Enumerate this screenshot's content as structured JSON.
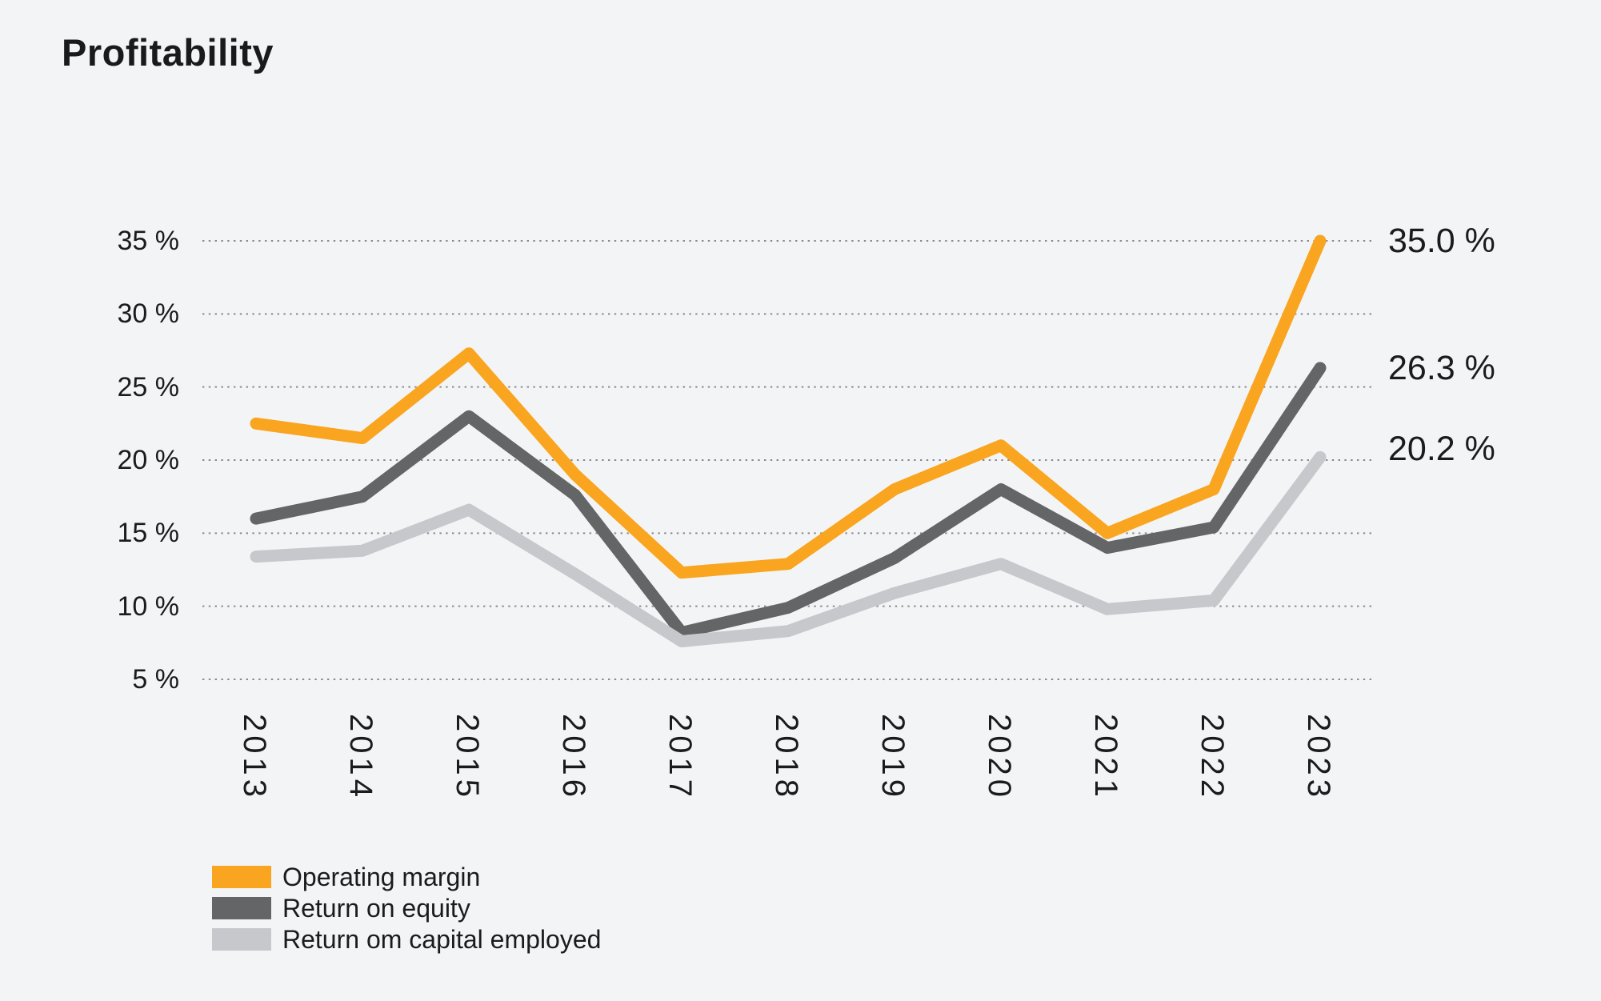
{
  "title": "Profitability",
  "colors": {
    "background": "#F3F4F6",
    "gridline": "#8A8A8A",
    "text": "#1B1B1B",
    "accent_orange": "#F9A51F",
    "dark_gray": "#636567",
    "light_gray": "#C6C8CB"
  },
  "chart_data": {
    "type": "line",
    "title": "Profitability",
    "categories": [
      "2013",
      "2014",
      "2015",
      "2016",
      "2017",
      "2018",
      "2019",
      "2020",
      "2021",
      "2022",
      "2023"
    ],
    "series": [
      {
        "name": "Operating margin",
        "color": "#F9A51F",
        "values": [
          22.5,
          21.5,
          27.3,
          19.0,
          12.3,
          12.9,
          18.0,
          21.0,
          15.0,
          18.0,
          35.0
        ],
        "end_label": "35.0 %"
      },
      {
        "name": "Return on equity",
        "color": "#636567",
        "values": [
          16.0,
          17.5,
          23.0,
          17.6,
          8.2,
          9.9,
          13.3,
          18.0,
          14.0,
          15.4,
          26.3
        ],
        "end_label": "26.3 %"
      },
      {
        "name": "Return om capital employed",
        "color": "#C6C8CB",
        "values": [
          13.4,
          13.8,
          16.6,
          12.2,
          7.6,
          8.3,
          10.9,
          12.9,
          9.8,
          10.4,
          20.2
        ],
        "end_label": "20.2 %"
      }
    ],
    "y_ticks": [
      {
        "value": 35,
        "label": "35 %"
      },
      {
        "value": 30,
        "label": "30 %"
      },
      {
        "value": 25,
        "label": "25 %"
      },
      {
        "value": 20,
        "label": "20 %"
      },
      {
        "value": 15,
        "label": "15 %"
      },
      {
        "value": 10,
        "label": "10 %"
      },
      {
        "value": 5,
        "label": "5 %"
      }
    ],
    "ylim": [
      5,
      35
    ],
    "grid": "dotted-horizontal",
    "legend_position": "bottom-left",
    "x_label_rotation": 90
  }
}
